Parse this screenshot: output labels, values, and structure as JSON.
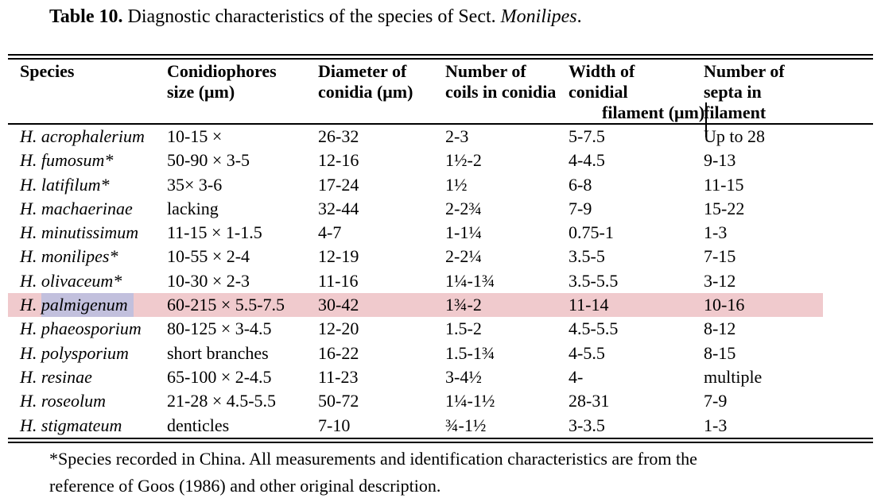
{
  "colors": {
    "page-bg": "#ffffff",
    "text": "#000000",
    "rule": "#000000",
    "row-highlight": "#f0cacd",
    "text-selection": "#c2c0dd"
  },
  "title": {
    "prefix": "Table 10.",
    "body": " Diagnostic characteristics of the species of Sect. ",
    "emphasis": "Monilipes",
    "suffix": "."
  },
  "table": {
    "header": {
      "species": [
        "Species"
      ],
      "conidiophores": [
        "Conidiophores",
        "size (μm)"
      ],
      "diameter": [
        "Diameter of",
        "conidia (μm)"
      ],
      "coils": [
        "Number of",
        "coils in conidia"
      ],
      "width": [
        "Width of",
        "conidial",
        "filament (μm)"
      ],
      "septa": [
        "Number of",
        "septa in",
        "filament"
      ]
    },
    "rows": [
      {
        "genus": "H.",
        "epithet": "acrophalerium",
        "conidiophores": "10-15 ×",
        "diameter": "26-32",
        "coils": "2-3",
        "width": "5-7.5",
        "septa": "Up to 28",
        "highlighted": false
      },
      {
        "genus": "H.",
        "epithet": "fumosum*",
        "conidiophores": "50-90 × 3-5",
        "diameter": "12-16",
        "coils": "1½-2",
        "width": "4-4.5",
        "septa": "9-13",
        "highlighted": false
      },
      {
        "genus": "H.",
        "epithet": "latifilum*",
        "conidiophores": "35× 3-6",
        "diameter": "17-24",
        "coils": "1½",
        "width": "6-8",
        "septa": "11-15",
        "highlighted": false
      },
      {
        "genus": "H.",
        "epithet": "machaerinae",
        "conidiophores": "lacking",
        "diameter": "32-44",
        "coils": "2-2¾",
        "width": "7-9",
        "septa": "15-22",
        "highlighted": false
      },
      {
        "genus": "H.",
        "epithet": "minutissimum",
        "conidiophores": "11-15 × 1-1.5",
        "diameter": "4-7",
        "coils": "1-1¼",
        "width": "0.75-1",
        "septa": "1-3",
        "highlighted": false
      },
      {
        "genus": "H.",
        "epithet": "monilipes*",
        "conidiophores": "10-55 × 2-4",
        "diameter": "12-19",
        "coils": "2-2¼",
        "width": "3.5-5",
        "septa": "7-15",
        "highlighted": false
      },
      {
        "genus": "H.",
        "epithet": "olivaceum*",
        "conidiophores": "10-30 × 2-3",
        "diameter": "11-16",
        "coils": "1¼-1¾",
        "width": "3.5-5.5",
        "septa": "3-12",
        "highlighted": false
      },
      {
        "genus": "H.",
        "epithet": "palmigenum",
        "conidiophores": "60-215 × 5.5-7.5",
        "diameter": "30-42",
        "coils": "1¾-2",
        "width": "11-14",
        "septa": "10-16",
        "highlighted": true,
        "epithet_selected": true
      },
      {
        "genus": "H.",
        "epithet": "phaeosporium",
        "conidiophores": "80-125 × 3-4.5",
        "diameter": "12-20",
        "coils": "1.5-2",
        "width": "4.5-5.5",
        "septa": "8-12",
        "highlighted": false
      },
      {
        "genus": "H.",
        "epithet": "polysporium",
        "conidiophores": "short branches",
        "diameter": "16-22",
        "coils": "1.5-1¾",
        "width": "4-5.5",
        "septa": "8-15",
        "highlighted": false
      },
      {
        "genus": "H.",
        "epithet": "resinae",
        "conidiophores": "65-100 × 2-4.5",
        "diameter": "11-23",
        "coils": "3-4½",
        "width": "4-",
        "septa": "multiple",
        "highlighted": false
      },
      {
        "genus": "H.",
        "epithet": "roseolum",
        "conidiophores": "21-28 × 4.5-5.5",
        "diameter": "50-72",
        "coils": "1¼-1½",
        "width": "28-31",
        "septa": "7-9",
        "highlighted": false
      },
      {
        "genus": "H.",
        "epithet": "stigmateum",
        "conidiophores": "denticles",
        "diameter": "7-10",
        "coils": "¾-1½",
        "width": "3-3.5",
        "septa": "1-3",
        "highlighted": false
      }
    ]
  },
  "footnote": {
    "lines": [
      "*Species recorded in China. All measurements and identification characteristics are from the",
      "reference of Goos (1986) and other original description."
    ]
  }
}
